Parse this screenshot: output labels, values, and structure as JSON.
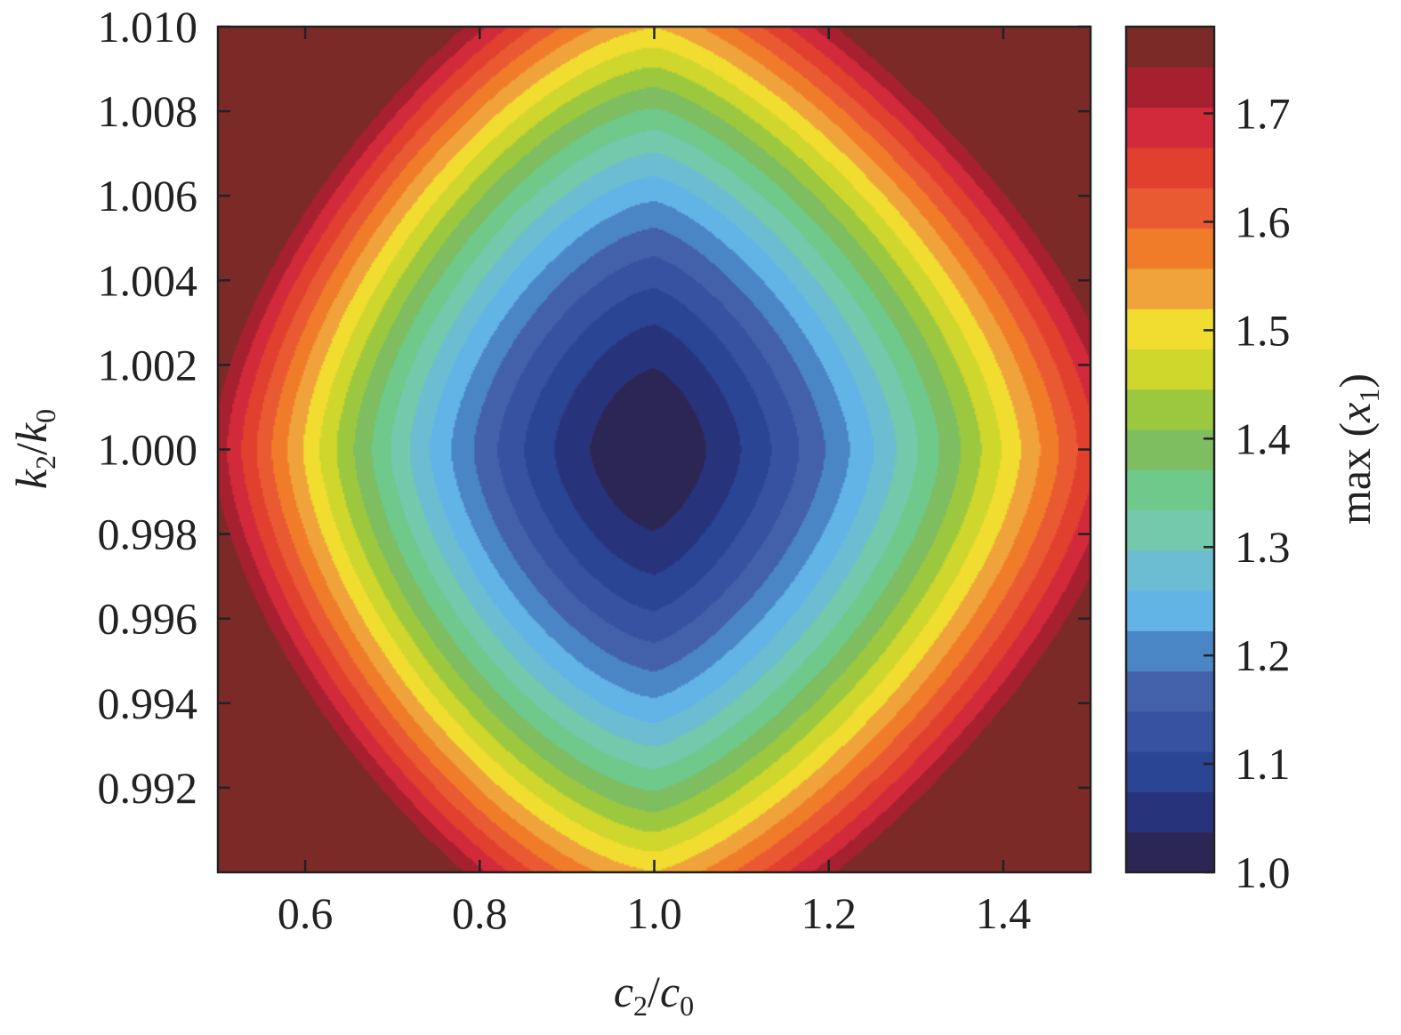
{
  "chart_data": {
    "type": "heatmap",
    "title": "",
    "x": {
      "var": "c",
      "sub": "2",
      "slash": "/",
      "var2": "c",
      "sub2": "0",
      "range": [
        0.5,
        1.5
      ],
      "ticks": [
        0.6,
        0.8,
        1.0,
        1.2,
        1.4
      ],
      "tick_labels": [
        "0.6",
        "0.8",
        "1.0",
        "1.2",
        "1.4"
      ]
    },
    "y": {
      "var": "k",
      "sub": "2",
      "slash": "/",
      "var2": "k",
      "sub2": "0",
      "range": [
        0.99,
        1.01
      ],
      "ticks": [
        0.992,
        0.994,
        0.996,
        0.998,
        1.0,
        1.002,
        1.004,
        1.006,
        1.008,
        1.01
      ],
      "tick_labels": [
        "0.992",
        "0.994",
        "0.996",
        "0.998",
        "1.000",
        "1.002",
        "1.004",
        "1.006",
        "1.008",
        "1.010"
      ]
    },
    "colorbar": {
      "pre": "max (",
      "var": "x",
      "sub": "1",
      "post": ")",
      "range": [
        1.0,
        1.78
      ],
      "ticks": [
        1.0,
        1.1,
        1.2,
        1.3,
        1.4,
        1.5,
        1.6,
        1.7
      ],
      "tick_labels": [
        "1.0",
        "1.1",
        "1.2",
        "1.3",
        "1.4",
        "1.5",
        "1.6",
        "1.7"
      ],
      "levels": 20,
      "colors": [
        "#2c2654",
        "#27347c",
        "#2a4594",
        "#3652a0",
        "#4360ab",
        "#4a86c6",
        "#62b4e6",
        "#6cbdd2",
        "#74c8ab",
        "#6ec98a",
        "#7ebd60",
        "#9cc840",
        "#cfd62c",
        "#f1dd30",
        "#f0a33a",
        "#f07c2a",
        "#ea5a32",
        "#e2402e",
        "#d22a3a",
        "#a62030",
        "#7c2a28"
      ]
    },
    "model": {
      "description_free": true,
      "center": [
        1.0,
        1.0
      ],
      "min_value": 1.0,
      "scale_c": 0.3,
      "scale_k": 0.0075,
      "gain": 0.33,
      "power_low_c": 1.55,
      "power_high_c": 1.35
    }
  }
}
